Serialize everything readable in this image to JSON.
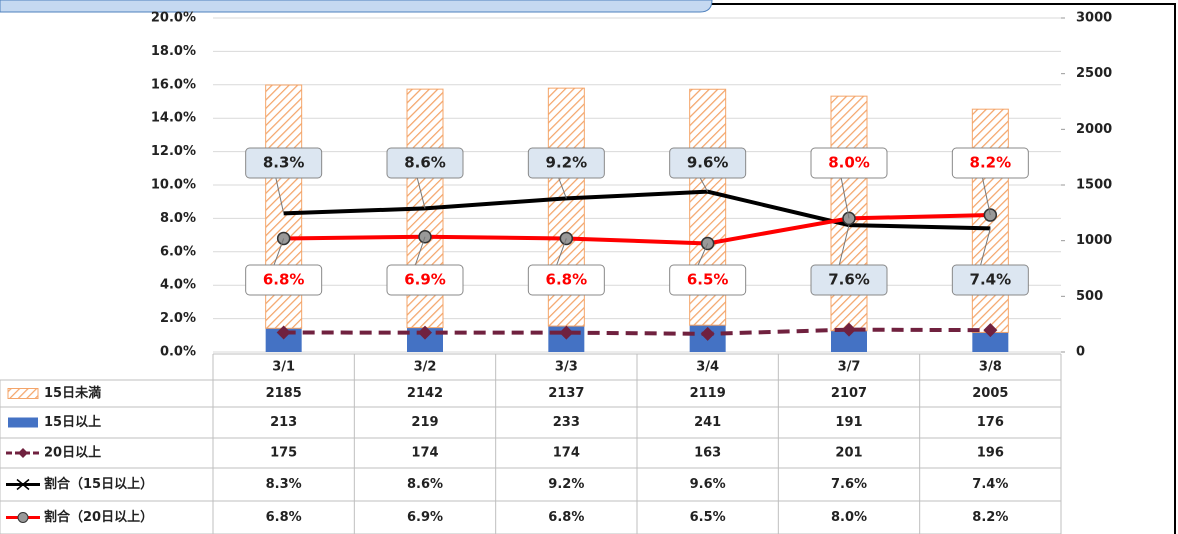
{
  "chart_data": {
    "type": "combo",
    "categories": [
      "3/1",
      "3/2",
      "3/3",
      "3/4",
      "3/7",
      "3/8"
    ],
    "ylim": [
      0,
      20
    ],
    "yticks": [
      {
        "value": 0,
        "label": "0.0%"
      },
      {
        "value": 2,
        "label": "2.0%"
      },
      {
        "value": 4,
        "label": "4.0%"
      },
      {
        "value": 6,
        "label": "6.0%"
      },
      {
        "value": 8,
        "label": "8.0%"
      },
      {
        "value": 10,
        "label": "10.0%"
      },
      {
        "value": 12,
        "label": "12.0%"
      },
      {
        "value": 14,
        "label": "14.0%"
      },
      {
        "value": 16,
        "label": "16.0%"
      },
      {
        "value": 18,
        "label": "18.0%"
      },
      {
        "value": 20,
        "label": "20.0%"
      }
    ],
    "y2lim": [
      0,
      3000
    ],
    "y2ticks": [
      0,
      500,
      1000,
      1500,
      2000,
      2500,
      3000
    ],
    "grid": true,
    "series": [
      {
        "name": "15日以上",
        "type": "bar",
        "axis": "y2",
        "color": "#4472c4",
        "values": [
          213,
          219,
          233,
          241,
          191,
          176
        ]
      },
      {
        "name": "15日未満",
        "type": "bar",
        "axis": "y2",
        "color": "#f4a56a",
        "hatch": true,
        "stacked": true,
        "values": [
          2185,
          2142,
          2137,
          2119,
          2107,
          2005
        ]
      },
      {
        "name": "20日以上",
        "type": "line",
        "axis": "y2",
        "color": "#70213f",
        "dashed": true,
        "values": [
          175,
          174,
          174,
          163,
          201,
          196
        ]
      },
      {
        "name": "割合（15日以上）",
        "type": "line",
        "axis": "y",
        "color": "#000000",
        "values": [
          8.3,
          8.6,
          9.2,
          9.6,
          7.6,
          7.4
        ],
        "value_labels": [
          "8.3%",
          "8.6%",
          "9.2%",
          "9.6%",
          "7.6%",
          "7.4%"
        ]
      },
      {
        "name": "割合（20日以上）",
        "type": "line",
        "axis": "y",
        "color": "#ff0000",
        "marker": true,
        "values": [
          6.8,
          6.9,
          6.8,
          6.5,
          8.0,
          8.2
        ],
        "value_labels": [
          "6.8%",
          "6.9%",
          "6.8%",
          "6.5%",
          "8.0%",
          "8.2%"
        ]
      }
    ],
    "table_order": [
      1,
      0,
      2,
      3,
      4
    ]
  }
}
